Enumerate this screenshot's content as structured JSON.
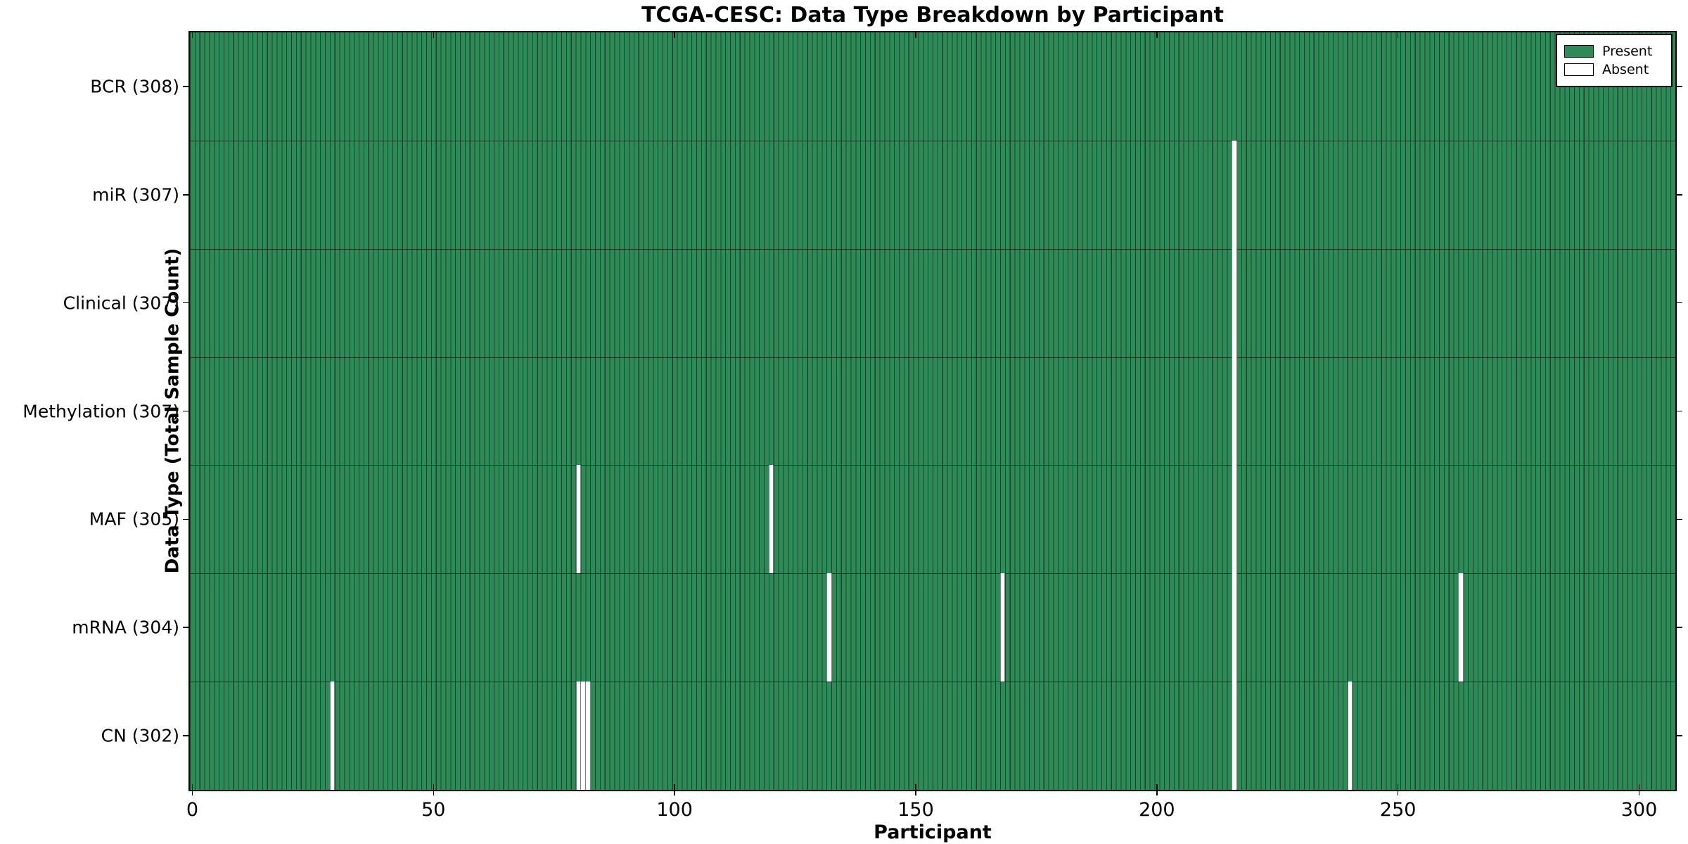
{
  "chart_data": {
    "type": "heatmap",
    "title": "TCGA-CESC: Data Type Breakdown by Participant",
    "xlabel": "Participant",
    "ylabel": "Data Type (Total Sample Count)",
    "x_ticks": [
      0,
      50,
      100,
      150,
      200,
      250,
      300
    ],
    "xlim": [
      -0.5,
      307.5
    ],
    "n_participants": 308,
    "grid": false,
    "legend_position": "upper right",
    "legend": [
      {
        "name": "present",
        "label": "Present",
        "color": "#2E8B57"
      },
      {
        "name": "absent",
        "label": "Absent",
        "color": "#FFFFFF"
      }
    ],
    "rows": [
      {
        "label": "BCR (308)",
        "data_type": "BCR",
        "total_samples": 308,
        "absent_participants": []
      },
      {
        "label": "miR (307)",
        "data_type": "miR",
        "total_samples": 307,
        "absent_participants": [
          216
        ]
      },
      {
        "label": "Clinical (307)",
        "data_type": "Clinical",
        "total_samples": 307,
        "absent_participants": [
          216
        ]
      },
      {
        "label": "Methylation (307)",
        "data_type": "Methylation",
        "total_samples": 307,
        "absent_participants": [
          216
        ]
      },
      {
        "label": "MAF (305)",
        "data_type": "MAF",
        "total_samples": 305,
        "absent_participants": [
          80,
          120,
          216
        ]
      },
      {
        "label": "mRNA (304)",
        "data_type": "mRNA",
        "total_samples": 304,
        "absent_participants": [
          132,
          168,
          216,
          263
        ]
      },
      {
        "label": "CN (302)",
        "data_type": "CN",
        "total_samples": 302,
        "absent_participants": [
          29,
          80,
          81,
          82,
          216,
          240
        ]
      }
    ],
    "colors": {
      "present": "#2E8B57",
      "absent": "#FFFFFF",
      "bar_edge": "rgba(0,0,0,0.5)",
      "spine": "#000000"
    }
  }
}
